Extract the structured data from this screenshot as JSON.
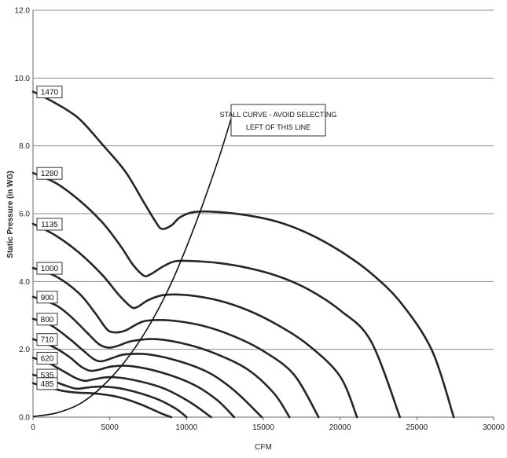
{
  "chart_data": {
    "type": "line",
    "title": "",
    "xlabel": "CFM",
    "ylabel": "Static Pressure (in WG)",
    "xlim": [
      0,
      30000
    ],
    "ylim": [
      0,
      12
    ],
    "x_ticks": [
      "0",
      "5000",
      "10000",
      "15000",
      "20000",
      "25000",
      "30000"
    ],
    "y_ticks": [
      "0.0",
      "2.0",
      "4.0",
      "6.0",
      "8.0",
      "10.0",
      "12.0"
    ],
    "grid": "horizontal",
    "legend": "none",
    "series": [
      {
        "name": "1470",
        "points": [
          [
            0,
            9.6
          ],
          [
            1500,
            9.25
          ],
          [
            3000,
            8.8
          ],
          [
            4500,
            8.05
          ],
          [
            6000,
            7.25
          ],
          [
            7200,
            6.35
          ],
          [
            8000,
            5.75
          ],
          [
            8400,
            5.55
          ],
          [
            9000,
            5.65
          ],
          [
            9600,
            5.9
          ],
          [
            10500,
            6.05
          ],
          [
            12000,
            6.05
          ],
          [
            14000,
            5.95
          ],
          [
            16000,
            5.75
          ],
          [
            18000,
            5.4
          ],
          [
            20000,
            4.9
          ],
          [
            22000,
            4.25
          ],
          [
            24000,
            3.35
          ],
          [
            26000,
            1.95
          ],
          [
            27400,
            0.0
          ]
        ]
      },
      {
        "name": "1280",
        "points": [
          [
            0,
            7.2
          ],
          [
            1500,
            6.9
          ],
          [
            3000,
            6.4
          ],
          [
            4500,
            5.75
          ],
          [
            5700,
            5.05
          ],
          [
            6500,
            4.5
          ],
          [
            7200,
            4.18
          ],
          [
            7600,
            4.2
          ],
          [
            8500,
            4.45
          ],
          [
            9300,
            4.6
          ],
          [
            10500,
            4.6
          ],
          [
            12000,
            4.55
          ],
          [
            14000,
            4.4
          ],
          [
            16000,
            4.15
          ],
          [
            18000,
            3.75
          ],
          [
            20000,
            3.15
          ],
          [
            22000,
            2.25
          ],
          [
            23900,
            0.0
          ]
        ]
      },
      {
        "name": "1135",
        "points": [
          [
            0,
            5.7
          ],
          [
            1500,
            5.35
          ],
          [
            3000,
            4.85
          ],
          [
            4500,
            4.2
          ],
          [
            5600,
            3.6
          ],
          [
            6400,
            3.25
          ],
          [
            6800,
            3.25
          ],
          [
            7500,
            3.45
          ],
          [
            8500,
            3.6
          ],
          [
            10000,
            3.6
          ],
          [
            12000,
            3.45
          ],
          [
            14000,
            3.15
          ],
          [
            16000,
            2.7
          ],
          [
            18000,
            2.1
          ],
          [
            20000,
            1.2
          ],
          [
            21100,
            0.0
          ]
        ]
      },
      {
        "name": "1000",
        "points": [
          [
            0,
            4.4
          ],
          [
            1500,
            4.15
          ],
          [
            3000,
            3.65
          ],
          [
            4000,
            3.1
          ],
          [
            4800,
            2.6
          ],
          [
            5300,
            2.5
          ],
          [
            6000,
            2.55
          ],
          [
            6800,
            2.75
          ],
          [
            7500,
            2.85
          ],
          [
            9000,
            2.85
          ],
          [
            11000,
            2.7
          ],
          [
            13000,
            2.4
          ],
          [
            15000,
            1.95
          ],
          [
            17000,
            1.25
          ],
          [
            18600,
            0.0
          ]
        ]
      },
      {
        "name": "900",
        "points": [
          [
            0,
            3.55
          ],
          [
            1500,
            3.3
          ],
          [
            2500,
            2.95
          ],
          [
            3500,
            2.5
          ],
          [
            4300,
            2.15
          ],
          [
            4900,
            2.05
          ],
          [
            5500,
            2.1
          ],
          [
            6500,
            2.25
          ],
          [
            8000,
            2.3
          ],
          [
            10000,
            2.15
          ],
          [
            12000,
            1.85
          ],
          [
            14000,
            1.4
          ],
          [
            15700,
            0.7
          ],
          [
            16700,
            0.0
          ]
        ]
      },
      {
        "name": "800",
        "points": [
          [
            0,
            2.9
          ],
          [
            1200,
            2.7
          ],
          [
            2400,
            2.3
          ],
          [
            3300,
            1.95
          ],
          [
            4000,
            1.7
          ],
          [
            4500,
            1.65
          ],
          [
            5200,
            1.75
          ],
          [
            6000,
            1.85
          ],
          [
            7500,
            1.85
          ],
          [
            9500,
            1.65
          ],
          [
            11500,
            1.3
          ],
          [
            13200,
            0.75
          ],
          [
            14900,
            0.0
          ]
        ]
      },
      {
        "name": "710",
        "points": [
          [
            0,
            2.3
          ],
          [
            1200,
            2.1
          ],
          [
            2300,
            1.8
          ],
          [
            3100,
            1.5
          ],
          [
            3700,
            1.37
          ],
          [
            4300,
            1.4
          ],
          [
            5200,
            1.5
          ],
          [
            6500,
            1.5
          ],
          [
            8500,
            1.3
          ],
          [
            10500,
            0.95
          ],
          [
            12000,
            0.5
          ],
          [
            13100,
            0.0
          ]
        ]
      },
      {
        "name": "620",
        "points": [
          [
            0,
            1.75
          ],
          [
            1000,
            1.6
          ],
          [
            2000,
            1.35
          ],
          [
            2800,
            1.15
          ],
          [
            3400,
            1.07
          ],
          [
            4000,
            1.12
          ],
          [
            5000,
            1.18
          ],
          [
            6500,
            1.1
          ],
          [
            8500,
            0.85
          ],
          [
            10200,
            0.45
          ],
          [
            11600,
            0.0
          ]
        ]
      },
      {
        "name": "535",
        "points": [
          [
            0,
            1.25
          ],
          [
            1000,
            1.12
          ],
          [
            2000,
            0.95
          ],
          [
            2800,
            0.84
          ],
          [
            3500,
            0.87
          ],
          [
            4500,
            0.9
          ],
          [
            6000,
            0.82
          ],
          [
            8000,
            0.55
          ],
          [
            9300,
            0.25
          ],
          [
            10000,
            0.0
          ]
        ]
      },
      {
        "name": "485",
        "points": [
          [
            0,
            1.0
          ],
          [
            1000,
            0.88
          ],
          [
            2000,
            0.77
          ],
          [
            3000,
            0.72
          ],
          [
            4000,
            0.7
          ],
          [
            5500,
            0.6
          ],
          [
            7000,
            0.38
          ],
          [
            8300,
            0.12
          ],
          [
            9000,
            0.0
          ]
        ]
      }
    ],
    "stall_curve": {
      "label_line1": "STALL  CURVE - AVOID SELECTING",
      "label_line2": "LEFT OF THIS LINE",
      "points": [
        [
          0,
          0.02
        ],
        [
          1500,
          0.12
        ],
        [
          3000,
          0.38
        ],
        [
          4500,
          0.9
        ],
        [
          6000,
          1.65
        ],
        [
          7500,
          2.65
        ],
        [
          9000,
          3.95
        ],
        [
          10500,
          5.6
        ],
        [
          12000,
          7.5
        ],
        [
          12900,
          8.8
        ]
      ]
    }
  }
}
